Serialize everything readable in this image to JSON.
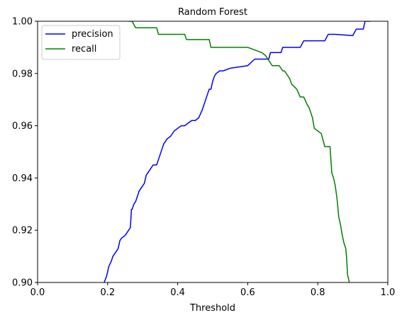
{
  "chart_data": {
    "type": "line",
    "title": "Random Forest",
    "xlabel": "Threshold",
    "ylabel": "",
    "xlim": [
      0.0,
      1.0
    ],
    "ylim": [
      0.9,
      1.0
    ],
    "xticks": [
      "0.0",
      "0.2",
      "0.4",
      "0.6",
      "0.8",
      "1.0"
    ],
    "yticks": [
      "0.90",
      "0.92",
      "0.94",
      "0.96",
      "0.98",
      "1.00"
    ],
    "xtick_values": [
      0.0,
      0.2,
      0.4,
      0.6,
      0.8,
      1.0
    ],
    "ytick_values": [
      0.9,
      0.92,
      0.94,
      0.96,
      0.98,
      1.0
    ],
    "grid": false,
    "legend_position": "top-left",
    "series": [
      {
        "name": "precision",
        "color": "#0000ff",
        "x": [
          0.19,
          0.196,
          0.2,
          0.203,
          0.21,
          0.215,
          0.22,
          0.23,
          0.235,
          0.24,
          0.25,
          0.26,
          0.265,
          0.268,
          0.27,
          0.275,
          0.28,
          0.285,
          0.29,
          0.295,
          0.3,
          0.305,
          0.31,
          0.32,
          0.33,
          0.34,
          0.345,
          0.35,
          0.355,
          0.36,
          0.37,
          0.38,
          0.39,
          0.4,
          0.41,
          0.42,
          0.43,
          0.44,
          0.45,
          0.46,
          0.47,
          0.475,
          0.48,
          0.485,
          0.49,
          0.495,
          0.5,
          0.505,
          0.51,
          0.52,
          0.53,
          0.55,
          0.6,
          0.62,
          0.64,
          0.66,
          0.665,
          0.68,
          0.695,
          0.7,
          0.75,
          0.76,
          0.78,
          0.8,
          0.82,
          0.83,
          0.85,
          0.9,
          0.91,
          0.93,
          0.935,
          0.94,
          0.95
        ],
        "y": [
          0.9,
          0.902,
          0.904,
          0.906,
          0.908,
          0.91,
          0.911,
          0.913,
          0.916,
          0.917,
          0.918,
          0.92,
          0.921,
          0.928,
          0.928,
          0.93,
          0.931,
          0.933,
          0.935,
          0.936,
          0.937,
          0.938,
          0.941,
          0.943,
          0.945,
          0.945,
          0.947,
          0.949,
          0.951,
          0.953,
          0.955,
          0.956,
          0.958,
          0.959,
          0.96,
          0.96,
          0.961,
          0.962,
          0.962,
          0.963,
          0.966,
          0.968,
          0.97,
          0.972,
          0.974,
          0.974,
          0.977,
          0.979,
          0.98,
          0.981,
          0.981,
          0.982,
          0.983,
          0.9855,
          0.9855,
          0.9855,
          0.988,
          0.988,
          0.988,
          0.99,
          0.99,
          0.9925,
          0.9925,
          0.9925,
          0.9925,
          0.995,
          0.995,
          0.9945,
          0.997,
          0.997,
          1.0,
          1.0,
          1.0
        ]
      },
      {
        "name": "recall",
        "color": "#008000",
        "x": [
          0.26,
          0.27,
          0.28,
          0.3,
          0.32,
          0.34,
          0.345,
          0.38,
          0.42,
          0.425,
          0.44,
          0.47,
          0.49,
          0.495,
          0.51,
          0.55,
          0.6,
          0.62,
          0.64,
          0.65,
          0.66,
          0.67,
          0.68,
          0.69,
          0.7,
          0.705,
          0.72,
          0.725,
          0.74,
          0.75,
          0.76,
          0.77,
          0.775,
          0.78,
          0.785,
          0.79,
          0.8,
          0.81,
          0.82,
          0.835,
          0.84,
          0.845,
          0.85,
          0.855,
          0.86,
          0.865,
          0.87,
          0.875,
          0.88,
          0.882,
          0.885,
          0.89
        ],
        "y": [
          1.0,
          1.0,
          0.9975,
          0.9975,
          0.9975,
          0.9975,
          0.995,
          0.995,
          0.995,
          0.993,
          0.993,
          0.993,
          0.993,
          0.99,
          0.99,
          0.99,
          0.99,
          0.989,
          0.988,
          0.987,
          0.985,
          0.983,
          0.983,
          0.983,
          0.981,
          0.981,
          0.978,
          0.976,
          0.974,
          0.971,
          0.971,
          0.968,
          0.967,
          0.965,
          0.963,
          0.959,
          0.958,
          0.957,
          0.952,
          0.952,
          0.942,
          0.94,
          0.937,
          0.932,
          0.925,
          0.922,
          0.918,
          0.915,
          0.913,
          0.91,
          0.903,
          0.9
        ]
      }
    ]
  }
}
